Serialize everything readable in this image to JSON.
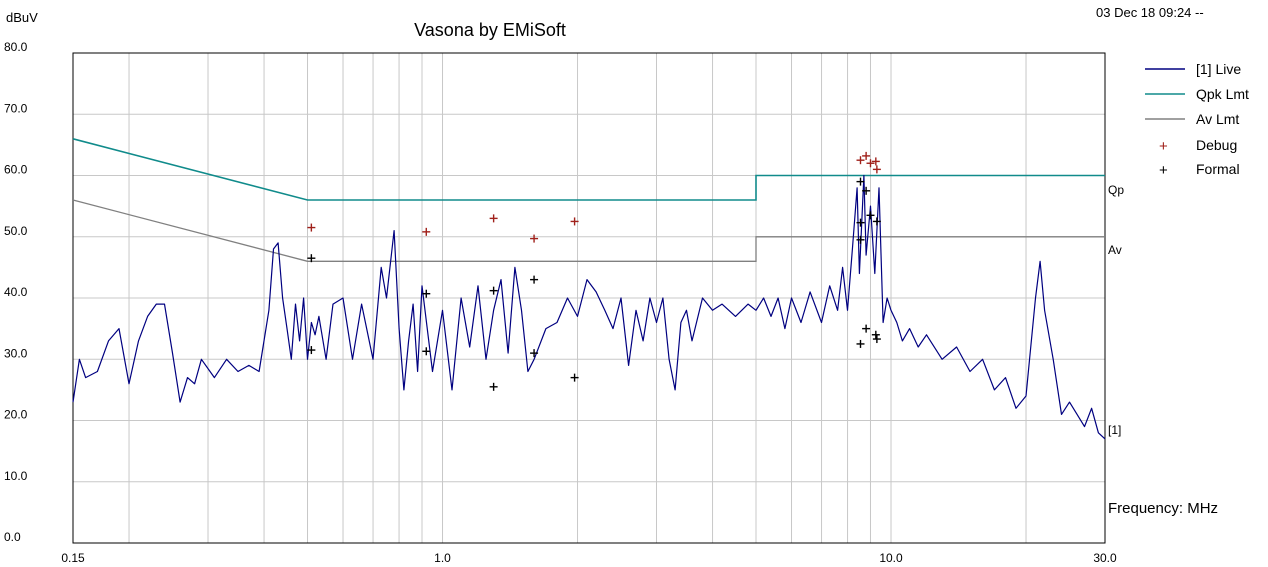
{
  "header": {
    "title": "Vasona by EMiSoft",
    "timestamp": "03 Dec 18 09:24 --",
    "y_unit": "dBuV",
    "x_unit_label": "Frequency: MHz"
  },
  "colors": {
    "live": "#000080",
    "qpk_limit": "#108b8b",
    "av_limit": "#808080",
    "debug": "#a0201a",
    "formal": "#000000",
    "grid": "#c8c8c8"
  },
  "chart_data": {
    "type": "line",
    "title": "Vasona by EMiSoft",
    "xlabel": "Frequency: MHz",
    "ylabel": "dBuV",
    "xscale": "log",
    "xlim": [
      0.15,
      30.0
    ],
    "ylim": [
      0.0,
      80.0
    ],
    "x_tick_labels": [
      "0.15",
      "1.0",
      "10.0",
      "30.0"
    ],
    "x_ticks": [
      0.15,
      1.0,
      10.0,
      30.0
    ],
    "y_ticks": [
      0.0,
      10.0,
      20.0,
      30.0,
      40.0,
      50.0,
      60.0,
      70.0,
      80.0
    ],
    "y_tick_labels": [
      "0.0",
      "10.0",
      "20.0",
      "30.0",
      "40.0",
      "50.0",
      "60.0",
      "70.0",
      "80.0"
    ],
    "grid": true,
    "legend": "top-right",
    "series": [
      {
        "name": "[1] Live",
        "style": "line",
        "color": "#000080",
        "points": [
          [
            0.15,
            23
          ],
          [
            0.155,
            30
          ],
          [
            0.16,
            27
          ],
          [
            0.17,
            28
          ],
          [
            0.18,
            33
          ],
          [
            0.19,
            35
          ],
          [
            0.2,
            26
          ],
          [
            0.21,
            33
          ],
          [
            0.22,
            37
          ],
          [
            0.23,
            39
          ],
          [
            0.24,
            39
          ],
          [
            0.25,
            31
          ],
          [
            0.26,
            23
          ],
          [
            0.27,
            27
          ],
          [
            0.28,
            26
          ],
          [
            0.29,
            30
          ],
          [
            0.31,
            27
          ],
          [
            0.33,
            30
          ],
          [
            0.35,
            28
          ],
          [
            0.37,
            29
          ],
          [
            0.39,
            28
          ],
          [
            0.4,
            33
          ],
          [
            0.41,
            38
          ],
          [
            0.42,
            48
          ],
          [
            0.43,
            49
          ],
          [
            0.44,
            40
          ],
          [
            0.45,
            35
          ],
          [
            0.46,
            30
          ],
          [
            0.47,
            39
          ],
          [
            0.48,
            33
          ],
          [
            0.49,
            40
          ],
          [
            0.5,
            30
          ],
          [
            0.51,
            36
          ],
          [
            0.52,
            34
          ],
          [
            0.53,
            37
          ],
          [
            0.55,
            30
          ],
          [
            0.57,
            39
          ],
          [
            0.6,
            40
          ],
          [
            0.63,
            30
          ],
          [
            0.66,
            39
          ],
          [
            0.7,
            30
          ],
          [
            0.73,
            45
          ],
          [
            0.75,
            40
          ],
          [
            0.78,
            51
          ],
          [
            0.8,
            35
          ],
          [
            0.82,
            25
          ],
          [
            0.84,
            33
          ],
          [
            0.86,
            39
          ],
          [
            0.88,
            28
          ],
          [
            0.9,
            42
          ],
          [
            0.95,
            28
          ],
          [
            1.0,
            38
          ],
          [
            1.05,
            25
          ],
          [
            1.1,
            40
          ],
          [
            1.15,
            32
          ],
          [
            1.2,
            42
          ],
          [
            1.25,
            30
          ],
          [
            1.3,
            38
          ],
          [
            1.35,
            43
          ],
          [
            1.4,
            31
          ],
          [
            1.45,
            45
          ],
          [
            1.5,
            38
          ],
          [
            1.55,
            28
          ],
          [
            1.6,
            30
          ],
          [
            1.7,
            35
          ],
          [
            1.8,
            36
          ],
          [
            1.9,
            40
          ],
          [
            2.0,
            37
          ],
          [
            2.1,
            43
          ],
          [
            2.2,
            41
          ],
          [
            2.3,
            38
          ],
          [
            2.4,
            35
          ],
          [
            2.5,
            40
          ],
          [
            2.6,
            29
          ],
          [
            2.7,
            38
          ],
          [
            2.8,
            33
          ],
          [
            2.9,
            40
          ],
          [
            3.0,
            36
          ],
          [
            3.1,
            40
          ],
          [
            3.2,
            30
          ],
          [
            3.3,
            25
          ],
          [
            3.4,
            36
          ],
          [
            3.5,
            38
          ],
          [
            3.6,
            33
          ],
          [
            3.8,
            40
          ],
          [
            4.0,
            38
          ],
          [
            4.2,
            39
          ],
          [
            4.5,
            37
          ],
          [
            4.8,
            39
          ],
          [
            5.0,
            38
          ],
          [
            5.2,
            40
          ],
          [
            5.4,
            37
          ],
          [
            5.6,
            40
          ],
          [
            5.8,
            35
          ],
          [
            6.0,
            40
          ],
          [
            6.3,
            36
          ],
          [
            6.6,
            41
          ],
          [
            7.0,
            36
          ],
          [
            7.3,
            42
          ],
          [
            7.6,
            38
          ],
          [
            7.8,
            45
          ],
          [
            8.0,
            38
          ],
          [
            8.2,
            48
          ],
          [
            8.4,
            58
          ],
          [
            8.5,
            44
          ],
          [
            8.7,
            60
          ],
          [
            8.8,
            47
          ],
          [
            9.0,
            55
          ],
          [
            9.2,
            44
          ],
          [
            9.4,
            58
          ],
          [
            9.6,
            36
          ],
          [
            9.8,
            40
          ],
          [
            10.0,
            38
          ],
          [
            10.3,
            36
          ],
          [
            10.6,
            33
          ],
          [
            11.0,
            35
          ],
          [
            11.5,
            32
          ],
          [
            12.0,
            34
          ],
          [
            13.0,
            30
          ],
          [
            14.0,
            32
          ],
          [
            15.0,
            28
          ],
          [
            16.0,
            30
          ],
          [
            17.0,
            25
          ],
          [
            18.0,
            27
          ],
          [
            19.0,
            22
          ],
          [
            20.0,
            24
          ],
          [
            21.0,
            40
          ],
          [
            21.5,
            46
          ],
          [
            22.0,
            38
          ],
          [
            23.0,
            30
          ],
          [
            24.0,
            21
          ],
          [
            25.0,
            23
          ],
          [
            26.0,
            21
          ],
          [
            27.0,
            19
          ],
          [
            28.0,
            22
          ],
          [
            29.0,
            18
          ],
          [
            30.0,
            17
          ]
        ]
      },
      {
        "name": "Qpk Lmt",
        "style": "line",
        "color": "#108b8b",
        "points": [
          [
            0.15,
            66
          ],
          [
            0.5,
            56
          ],
          [
            5.0,
            56
          ],
          [
            5.0,
            60
          ],
          [
            30.0,
            60
          ]
        ],
        "end_label": "Qp"
      },
      {
        "name": "Av Lmt",
        "style": "line",
        "color": "#808080",
        "points": [
          [
            0.15,
            56
          ],
          [
            0.5,
            46
          ],
          [
            5.0,
            46
          ],
          [
            5.0,
            50
          ],
          [
            30.0,
            50
          ]
        ],
        "end_label": "Av"
      },
      {
        "name": "Debug",
        "style": "marker",
        "marker": "+",
        "color": "#a0201a",
        "points": [
          [
            0.51,
            51.5
          ],
          [
            0.92,
            50.8
          ],
          [
            1.3,
            53.0
          ],
          [
            1.6,
            49.7
          ],
          [
            1.97,
            52.5
          ],
          [
            8.55,
            62.5
          ],
          [
            8.8,
            63.2
          ],
          [
            9.0,
            62.0
          ],
          [
            9.25,
            62.3
          ],
          [
            9.3,
            61.0
          ]
        ]
      },
      {
        "name": "Formal",
        "style": "marker",
        "marker": "+",
        "color": "#000000",
        "points": [
          [
            0.51,
            46.5
          ],
          [
            0.51,
            31.5
          ],
          [
            0.92,
            40.7
          ],
          [
            0.92,
            31.3
          ],
          [
            1.3,
            41.2
          ],
          [
            1.3,
            25.5
          ],
          [
            1.6,
            43.0
          ],
          [
            1.6,
            31.0
          ],
          [
            1.97,
            27.0
          ],
          [
            8.55,
            59.0
          ],
          [
            8.55,
            52.3
          ],
          [
            8.55,
            49.5
          ],
          [
            8.55,
            32.5
          ],
          [
            8.8,
            57.5
          ],
          [
            8.8,
            35.0
          ],
          [
            9.0,
            53.5
          ],
          [
            9.25,
            34.0
          ],
          [
            9.3,
            52.5
          ],
          [
            9.3,
            33.3
          ]
        ]
      }
    ],
    "trace_end_label": "[1]"
  }
}
